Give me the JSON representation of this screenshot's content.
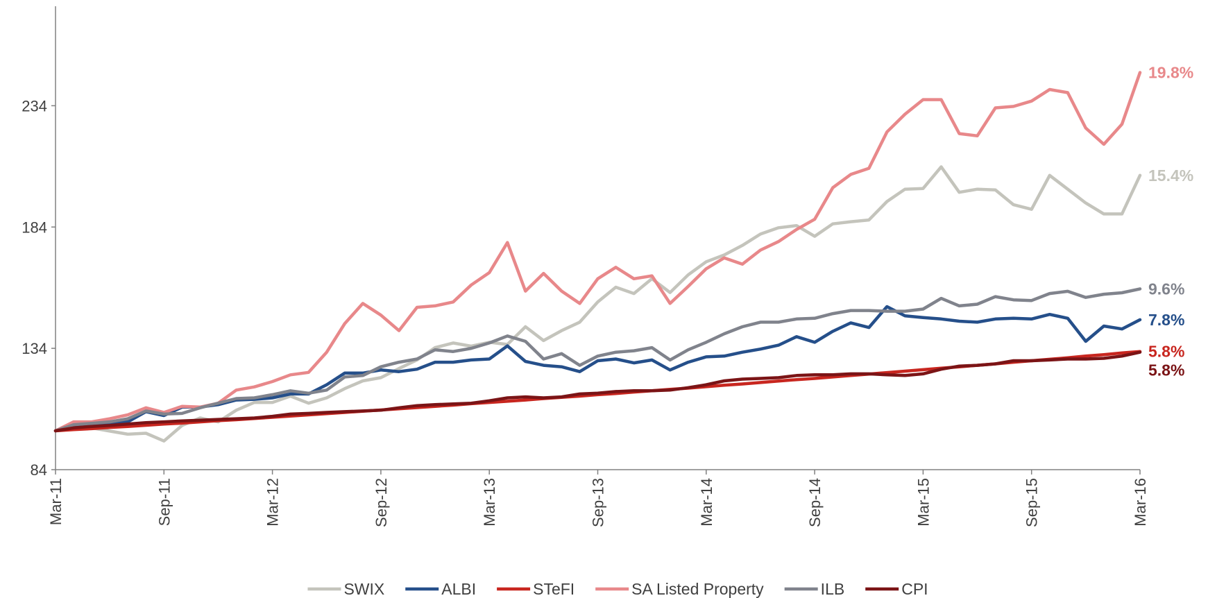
{
  "chart_data": {
    "type": "line",
    "categories": [
      "Mar-11",
      null,
      null,
      null,
      null,
      null,
      "Sep-11",
      null,
      null,
      null,
      null,
      null,
      "Mar-12",
      null,
      null,
      null,
      null,
      null,
      "Sep-12",
      null,
      null,
      null,
      null,
      null,
      "Mar-13",
      null,
      null,
      null,
      null,
      null,
      "Sep-13",
      null,
      null,
      null,
      null,
      null,
      "Mar-14",
      null,
      null,
      null,
      null,
      null,
      "Sep-14",
      null,
      null,
      null,
      null,
      null,
      "Mar-15",
      null,
      null,
      null,
      null,
      null,
      "Sep-15",
      null,
      null,
      null,
      null,
      null,
      "Mar-16"
    ],
    "ylim": [
      84,
      275
    ],
    "yticks": [
      84,
      134,
      184,
      234
    ],
    "grid": false,
    "series": [
      {
        "name": "SWIX",
        "color": "#c4c4bc",
        "end_label": "15.4%",
        "values": [
          100,
          101.5,
          101.2,
          99.9,
          98.6,
          99,
          95.8,
          102.2,
          105.3,
          103.7,
          108.5,
          111.7,
          111.7,
          114.3,
          111.4,
          113.6,
          117.4,
          120.6,
          121.9,
          125.7,
          129.2,
          134.3,
          136.2,
          134.9,
          136.5,
          135.6,
          142.9,
          137.2,
          141.3,
          144.8,
          153.1,
          159.2,
          156.6,
          162.7,
          157,
          164.3,
          169.7,
          172.5,
          176.4,
          181.1,
          183.7,
          184.6,
          180.2,
          185.3,
          186.2,
          186.9,
          194.5,
          199.6,
          199.9,
          208.8,
          198.3,
          199.6,
          199.3,
          193.2,
          191.3,
          205.3,
          199.6,
          193.9,
          189.4,
          189.4,
          205.3
        ]
      },
      {
        "name": "ALBI",
        "color": "#254f8a",
        "end_label": "7.8%",
        "values": [
          100,
          102.2,
          102.5,
          103.1,
          103.7,
          107.9,
          106.3,
          109.8,
          109.8,
          110.8,
          112.7,
          113,
          113.6,
          115.2,
          115.2,
          119,
          123.8,
          123.8,
          125.1,
          124.4,
          125.4,
          128.3,
          128.3,
          129.2,
          129.6,
          135,
          128.6,
          127,
          126.4,
          124.4,
          128.9,
          129.6,
          128,
          129.2,
          125.1,
          128.3,
          130.5,
          130.8,
          132.4,
          133.7,
          135.3,
          138.8,
          136.5,
          141,
          144.5,
          142.6,
          151.2,
          147.4,
          146.7,
          146.1,
          145.2,
          144.8,
          146.1,
          146.4,
          146.1,
          148,
          146.4,
          136.9,
          143.2,
          142,
          145.8
        ]
      },
      {
        "name": "STeFI",
        "color": "#c8261f",
        "end_label": "5.8%",
        "values": [
          100,
          100.5,
          100.9,
          101.4,
          101.8,
          102.3,
          102.8,
          103.2,
          103.7,
          104.2,
          104.6,
          105.1,
          105.6,
          106.1,
          106.6,
          107.1,
          107.6,
          108.1,
          108.6,
          109.1,
          109.6,
          110.1,
          110.6,
          111.2,
          111.7,
          112.2,
          112.7,
          113.3,
          113.8,
          114.3,
          114.9,
          115.4,
          116.0,
          116.5,
          117.1,
          117.6,
          118.2,
          118.8,
          119.3,
          119.9,
          120.5,
          121.1,
          121.6,
          122.2,
          122.8,
          123.4,
          124.0,
          124.6,
          125.2,
          125.8,
          126.4,
          127.0,
          127.6,
          128.3,
          128.9,
          129.5,
          130.1,
          130.8,
          131.4,
          132.1,
          132.7
        ]
      },
      {
        "name": "SA Listed Property",
        "color": "#e8888a",
        "end_label": "19.8%",
        "values": [
          100,
          103.7,
          103.7,
          105,
          106.6,
          109.5,
          107.6,
          110.1,
          109.8,
          111.4,
          116.8,
          118.1,
          120.3,
          123.1,
          124.1,
          132.4,
          144.2,
          152.5,
          147.7,
          141.3,
          150.9,
          151.5,
          153.1,
          160.1,
          165.2,
          177.6,
          157.6,
          164.9,
          157.6,
          152.5,
          162.7,
          167.4,
          162.7,
          163.9,
          152.5,
          159.5,
          166.8,
          171.3,
          168.7,
          174.5,
          178,
          183,
          187.2,
          200.2,
          205.7,
          208.2,
          223.2,
          230.5,
          236.5,
          236.5,
          222.5,
          221.6,
          233.1,
          233.7,
          235.9,
          240.7,
          239.4,
          224.8,
          218.1,
          226.4,
          247.7
        ]
      },
      {
        "name": "ILB",
        "color": "#80838c",
        "end_label": "9.6%",
        "values": [
          100,
          102.5,
          103.1,
          103.7,
          105,
          108.2,
          106.9,
          107.2,
          109.5,
          111.4,
          113.3,
          113.6,
          114.9,
          116.5,
          115.5,
          116.8,
          122.2,
          122.8,
          126.4,
          128.3,
          129.6,
          133.4,
          132.7,
          134,
          136.2,
          139.1,
          136.9,
          129.6,
          131.8,
          127,
          130.8,
          132.4,
          133,
          134.3,
          129.2,
          133.4,
          136.5,
          140,
          142.9,
          144.8,
          144.8,
          146.1,
          146.4,
          148.3,
          149.6,
          149.6,
          149.3,
          149.3,
          150.2,
          154.6,
          151.5,
          152.2,
          155.3,
          154,
          153.7,
          156.6,
          157.5,
          155,
          156.3,
          156.9,
          158.5
        ]
      },
      {
        "name": "CPI",
        "color": "#7b1416",
        "end_label": "5.8%",
        "values": [
          100,
          101.2,
          101.8,
          102.2,
          102.8,
          103.4,
          103.7,
          104.1,
          104.4,
          104.7,
          105,
          105.3,
          106,
          106.9,
          107.2,
          107.6,
          107.9,
          108.2,
          108.5,
          109.5,
          110.4,
          110.8,
          111.1,
          111.4,
          112.4,
          113.6,
          114,
          113.6,
          114,
          115.2,
          115.5,
          116.2,
          116.5,
          116.5,
          116.8,
          117.8,
          119,
          120.6,
          121.3,
          121.6,
          121.9,
          122.8,
          123.1,
          123.1,
          123.5,
          123.5,
          123.1,
          122.8,
          123.5,
          125.4,
          126.7,
          127,
          127.6,
          128.9,
          128.9,
          129.2,
          129.6,
          129.6,
          129.9,
          130.8,
          132.4
        ]
      }
    ]
  }
}
